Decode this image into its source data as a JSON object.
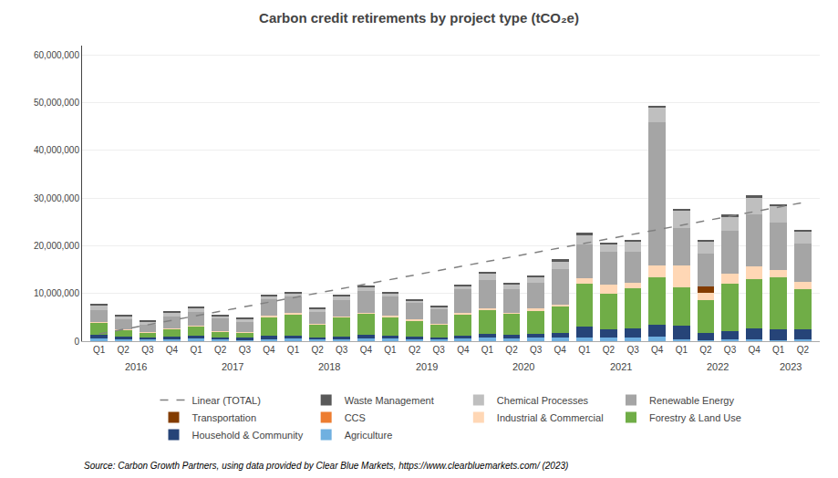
{
  "chart_data": {
    "type": "bar",
    "title": "Carbon credit retirements by project type (tCO₂e)",
    "stacked": true,
    "grid": true,
    "legend": "bottom",
    "categories": [
      "Q1",
      "Q2",
      "Q3",
      "Q4",
      "Q1",
      "Q2",
      "Q3",
      "Q4",
      "Q1",
      "Q2",
      "Q3",
      "Q4",
      "Q1",
      "Q2",
      "Q3",
      "Q4",
      "Q1",
      "Q2",
      "Q3",
      "Q4",
      "Q1",
      "Q2",
      "Q3",
      "Q4",
      "Q1",
      "Q2",
      "Q3",
      "Q4",
      "Q1",
      "Q2"
    ],
    "annotations": [
      {
        "text": "2016",
        "x": 1.5
      },
      {
        "text": "2017",
        "x": 5.5
      },
      {
        "text": "2018",
        "x": 9.5
      },
      {
        "text": "2019",
        "x": 13.5
      },
      {
        "text": "2020",
        "x": 17.5
      },
      {
        "text": "2021",
        "x": 21.5
      },
      {
        "text": "2022",
        "x": 25.5
      },
      {
        "text": "2023",
        "x": 28.5
      },
      {
        "text": "Source: Carbon Growth Partners, using data provided by Clear Blue Markets, https://www.clearbluemarkets.com/ (2023)"
      }
    ],
    "ylim": [
      0,
      62000000
    ],
    "yticks": [
      0,
      {
        "value": 10000000,
        "label": "10,000,000"
      },
      {
        "value": 20000000,
        "label": "20,000,000"
      },
      {
        "value": 30000000,
        "label": "30,000,000"
      },
      {
        "value": 40000000,
        "label": "40,000,000"
      },
      {
        "value": 50000000,
        "label": "50,000,000"
      },
      {
        "value": 60000000,
        "label": "60,000,000"
      }
    ],
    "series": [
      {
        "name": "Agriculture",
        "color": "#70B0E0",
        "values": [
          600000,
          400000,
          300000,
          300000,
          500000,
          300000,
          200000,
          400000,
          500000,
          300000,
          400000,
          600000,
          500000,
          400000,
          300000,
          500000,
          700000,
          600000,
          700000,
          800000,
          800000,
          700000,
          800000,
          900000,
          300000,
          200000,
          300000,
          400000,
          200000,
          300000
        ]
      },
      {
        "name": "Household & Community",
        "color": "#264478",
        "values": [
          800000,
          600000,
          500000,
          600000,
          600000,
          500000,
          500000,
          700000,
          700000,
          500000,
          600000,
          700000,
          600000,
          500000,
          500000,
          700000,
          900000,
          700000,
          800000,
          1000000,
          2200000,
          1800000,
          1800000,
          2500000,
          3000000,
          1500000,
          1800000,
          2200000,
          2200000,
          2200000
        ]
      },
      {
        "name": "Forestry & Land Use",
        "color": "#70AD47",
        "values": [
          2500000,
          1400000,
          1100000,
          1700000,
          2000000,
          1300000,
          1200000,
          4000000,
          4500000,
          2800000,
          4000000,
          4500000,
          4000000,
          3500000,
          2800000,
          4500000,
          5000000,
          4500000,
          5000000,
          5500000,
          9000000,
          7500000,
          8500000,
          10000000,
          8000000,
          7000000,
          10000000,
          10500000,
          11000000,
          8500000
        ]
      },
      {
        "name": "Industrial & Commercial",
        "color": "#FFD7B5",
        "values": [
          100000,
          100000,
          100000,
          100000,
          100000,
          100000,
          100000,
          200000,
          200000,
          100000,
          200000,
          200000,
          200000,
          100000,
          100000,
          200000,
          300000,
          200000,
          300000,
          400000,
          1200000,
          1800000,
          1200000,
          2500000,
          4500000,
          1500000,
          2000000,
          2500000,
          1500000,
          1500000
        ]
      },
      {
        "name": "CCS",
        "color": "#ED7D31",
        "values": [
          0,
          0,
          0,
          0,
          0,
          0,
          0,
          0,
          0,
          0,
          0,
          0,
          0,
          0,
          0,
          0,
          0,
          0,
          0,
          0,
          0,
          0,
          0,
          0,
          0,
          0,
          0,
          0,
          0,
          0
        ]
      },
      {
        "name": "Transportation",
        "color": "#833C00",
        "values": [
          0,
          0,
          0,
          0,
          0,
          0,
          0,
          0,
          0,
          0,
          0,
          0,
          0,
          0,
          0,
          0,
          0,
          0,
          0,
          0,
          0,
          0,
          0,
          0,
          0,
          1200000,
          0,
          0,
          0,
          0
        ]
      },
      {
        "name": "Renewable Energy",
        "color": "#A5A5A5",
        "values": [
          2500000,
          2000000,
          1500000,
          2500000,
          3000000,
          2500000,
          2000000,
          3500000,
          3500000,
          2500000,
          3500000,
          4500000,
          4000000,
          3500000,
          3000000,
          5000000,
          6000000,
          5000000,
          5500000,
          7500000,
          7000000,
          7000000,
          6500000,
          30000000,
          8000000,
          7000000,
          9000000,
          11000000,
          10000000,
          8000000
        ]
      },
      {
        "name": "Chemical Processes",
        "color": "#BFBFBF",
        "values": [
          1000000,
          800000,
          700000,
          800000,
          700000,
          600000,
          600000,
          700000,
          700000,
          500000,
          700000,
          800000,
          700000,
          600000,
          500000,
          700000,
          1200000,
          1000000,
          1100000,
          1500000,
          2000000,
          1500000,
          2000000,
          3000000,
          3500000,
          2500000,
          3000000,
          3500000,
          3500000,
          2500000
        ]
      },
      {
        "name": "Waste Management",
        "color": "#595959",
        "values": [
          400000,
          300000,
          200000,
          300000,
          300000,
          250000,
          200000,
          300000,
          300000,
          200000,
          250000,
          400000,
          300000,
          200000,
          200000,
          300000,
          400000,
          300000,
          350000,
          500000,
          500000,
          400000,
          450000,
          500000,
          400000,
          400000,
          500000,
          600000,
          400000,
          400000
        ]
      },
      {
        "name": "Linear (TOTAL)",
        "type": "line",
        "line_style": "dashed",
        "color": "#808080",
        "values": [
          1526344,
          2476022,
          3425699,
          4375376,
          5325054,
          6274731,
          7224409,
          8174086,
          9123763,
          10073441,
          11023118,
          11972796,
          12922473,
          13872151,
          14821828,
          15771505,
          16721183,
          17670860,
          18620538,
          19570215,
          20519892,
          21469570,
          22419247,
          23368925,
          24318602,
          25268280,
          26217957,
          27167634,
          28117312,
          29066989
        ]
      }
    ]
  }
}
